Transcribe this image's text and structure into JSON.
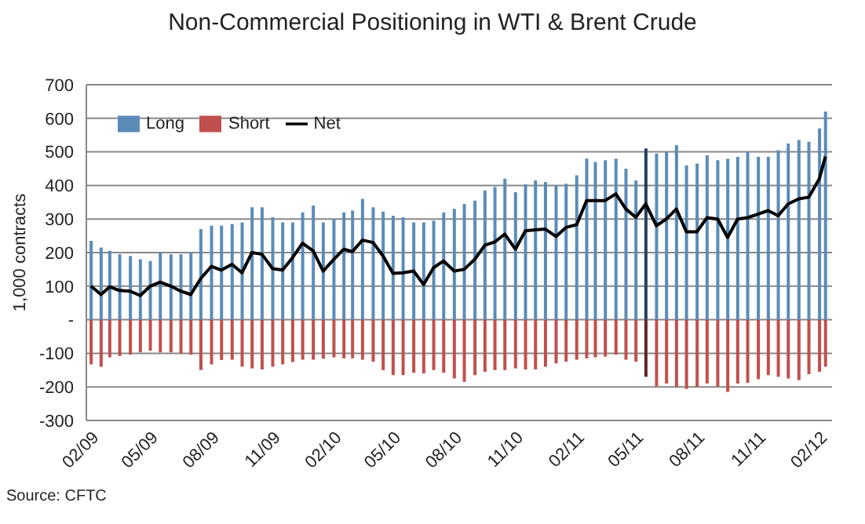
{
  "chart_data": {
    "type": "bar",
    "title": "Non-Commercial Positioning in WTI & Brent Crude",
    "ylabel": "1,000 contracts",
    "annotations": [
      "Source: CFTC"
    ],
    "x": [
      "2009-02-01",
      "2009-02-16",
      "2009-03-01",
      "2009-03-16",
      "2009-04-01",
      "2009-04-16",
      "2009-05-01",
      "2009-05-16",
      "2009-06-01",
      "2009-06-16",
      "2009-07-01",
      "2009-07-16",
      "2009-08-01",
      "2009-08-16",
      "2009-09-01",
      "2009-09-16",
      "2009-10-01",
      "2009-10-16",
      "2009-11-01",
      "2009-11-16",
      "2009-12-01",
      "2009-12-16",
      "2010-01-01",
      "2010-01-16",
      "2010-02-01",
      "2010-02-16",
      "2010-03-01",
      "2010-03-16",
      "2010-04-01",
      "2010-04-16",
      "2010-05-01",
      "2010-05-16",
      "2010-06-01",
      "2010-06-16",
      "2010-07-01",
      "2010-07-16",
      "2010-08-01",
      "2010-08-16",
      "2010-09-01",
      "2010-09-16",
      "2010-10-01",
      "2010-10-16",
      "2010-11-01",
      "2010-11-16",
      "2010-12-01",
      "2010-12-16",
      "2011-01-01",
      "2011-01-16",
      "2011-02-01",
      "2011-02-16",
      "2011-03-01",
      "2011-03-16",
      "2011-04-01",
      "2011-04-16",
      "2011-05-01",
      "2011-05-16",
      "2011-06-01",
      "2011-06-16",
      "2011-07-01",
      "2011-07-16",
      "2011-08-01",
      "2011-08-16",
      "2011-09-01",
      "2011-09-16",
      "2011-10-01",
      "2011-10-16",
      "2011-11-01",
      "2011-11-16",
      "2011-12-01",
      "2011-12-16",
      "2012-01-01",
      "2012-01-16",
      "2012-02-01",
      "2012-02-10"
    ],
    "series": [
      {
        "name": "Long",
        "color": "#5b8cb8",
        "values": [
          235,
          215,
          205,
          195,
          190,
          180,
          175,
          200,
          195,
          195,
          200,
          270,
          280,
          280,
          285,
          290,
          335,
          335,
          305,
          290,
          290,
          320,
          340,
          290,
          300,
          320,
          325,
          360,
          335,
          322,
          310,
          305,
          290,
          290,
          295,
          320,
          330,
          345,
          355,
          385,
          395,
          420,
          380,
          403,
          415,
          410,
          400,
          405,
          430,
          480,
          470,
          475,
          480,
          450,
          415,
          510,
          495,
          500,
          520,
          460,
          465,
          490,
          475,
          480,
          485,
          500,
          485,
          485,
          505,
          525,
          535,
          530,
          570,
          620
        ],
        "colors": [
          "#5b8cb8",
          "#5b8cb8",
          "#5b8cb8",
          "#5b8cb8",
          "#5b8cb8",
          "#5b8cb8",
          "#5b8cb8",
          "#5b8cb8",
          "#5b8cb8",
          "#5b8cb8",
          "#5b8cb8",
          "#5b8cb8",
          "#5b8cb8",
          "#5b8cb8",
          "#5b8cb8",
          "#5b8cb8",
          "#5b8cb8",
          "#5b8cb8",
          "#5b8cb8",
          "#5b8cb8",
          "#5b8cb8",
          "#5b8cb8",
          "#5b8cb8",
          "#5b8cb8",
          "#5b8cb8",
          "#5b8cb8",
          "#5b8cb8",
          "#5b8cb8",
          "#5b8cb8",
          "#5b8cb8",
          "#5b8cb8",
          "#5b8cb8",
          "#5b8cb8",
          "#5b8cb8",
          "#5b8cb8",
          "#5b8cb8",
          "#5b8cb8",
          "#5b8cb8",
          "#5b8cb8",
          "#5b8cb8",
          "#5b8cb8",
          "#5b8cb8",
          "#5b8cb8",
          "#5b8cb8",
          "#5b8cb8",
          "#5b8cb8",
          "#5b8cb8",
          "#5b8cb8",
          "#5b8cb8",
          "#5b8cb8",
          "#5b8cb8",
          "#5b8cb8",
          "#5b8cb8",
          "#5b8cb8",
          "#5b8cb8",
          "#243f60",
          "#5b8cb8",
          "#5b8cb8",
          "#5b8cb8",
          "#5b8cb8",
          "#5b8cb8",
          "#5b8cb8",
          "#5b8cb8",
          "#5b8cb8",
          "#5b8cb8",
          "#5b8cb8",
          "#5b8cb8",
          "#5b8cb8",
          "#5b8cb8",
          "#5b8cb8",
          "#5b8cb8",
          "#5b8cb8",
          "#5b8cb8",
          "#5b8cb8"
        ]
      },
      {
        "name": "Short",
        "color": "#c0504d",
        "values": [
          -133,
          -140,
          -112,
          -108,
          -104,
          -97,
          -92,
          -97,
          -97,
          -100,
          -104,
          -150,
          -133,
          -120,
          -119,
          -140,
          -145,
          -148,
          -140,
          -133,
          -126,
          -119,
          -119,
          -116,
          -112,
          -115,
          -115,
          -119,
          -125,
          -150,
          -165,
          -165,
          -158,
          -160,
          -150,
          -158,
          -175,
          -185,
          -165,
          -155,
          -150,
          -150,
          -145,
          -148,
          -148,
          -140,
          -130,
          -125,
          -119,
          -115,
          -112,
          -110,
          -104,
          -119,
          -125,
          -170,
          -199,
          -190,
          -200,
          -206,
          -200,
          -190,
          -199,
          -215,
          -190,
          -188,
          -177,
          -165,
          -170,
          -175,
          -180,
          -162,
          -155,
          -140
        ],
        "colors": [
          "#c0504d",
          "#c0504d",
          "#c0504d",
          "#c0504d",
          "#c0504d",
          "#c0504d",
          "#c0504d",
          "#c0504d",
          "#c0504d",
          "#c0504d",
          "#c0504d",
          "#c0504d",
          "#c0504d",
          "#c0504d",
          "#c0504d",
          "#c0504d",
          "#c0504d",
          "#c0504d",
          "#c0504d",
          "#c0504d",
          "#c0504d",
          "#c0504d",
          "#c0504d",
          "#c0504d",
          "#c0504d",
          "#c0504d",
          "#c0504d",
          "#c0504d",
          "#c0504d",
          "#c0504d",
          "#c0504d",
          "#c0504d",
          "#c0504d",
          "#c0504d",
          "#c0504d",
          "#c0504d",
          "#c0504d",
          "#c0504d",
          "#c0504d",
          "#c0504d",
          "#c0504d",
          "#c0504d",
          "#c0504d",
          "#c0504d",
          "#c0504d",
          "#c0504d",
          "#c0504d",
          "#c0504d",
          "#c0504d",
          "#c0504d",
          "#c0504d",
          "#c0504d",
          "#c0504d",
          "#c0504d",
          "#c0504d",
          "#632523",
          "#c0504d",
          "#c0504d",
          "#c0504d",
          "#c0504d",
          "#c0504d",
          "#c0504d",
          "#c0504d",
          "#c0504d",
          "#c0504d",
          "#c0504d",
          "#c0504d",
          "#c0504d",
          "#c0504d",
          "#c0504d",
          "#c0504d",
          "#c0504d",
          "#c0504d",
          "#c0504d"
        ]
      },
      {
        "name": "Net",
        "type": "line",
        "color": "#000000",
        "values": [
          100,
          75,
          98,
          87,
          85,
          72,
          100,
          112,
          100,
          85,
          75,
          123,
          159,
          148,
          165,
          140,
          200,
          195,
          152,
          148,
          185,
          228,
          205,
          145,
          180,
          210,
          203,
          237,
          230,
          190,
          138,
          140,
          145,
          105,
          155,
          175,
          145,
          150,
          180,
          222,
          232,
          255,
          210,
          265,
          268,
          270,
          248,
          275,
          283,
          355,
          355,
          355,
          375,
          330,
          305,
          345,
          280,
          300,
          330,
          262,
          262,
          304,
          300,
          245,
          300,
          304,
          315,
          325,
          310,
          345,
          360,
          365,
          420,
          486
        ]
      }
    ],
    "xlim": [
      "2009-01-25",
      "2012-02-20"
    ],
    "xticks": [
      {
        "value": "2009-02-01",
        "label": "02/09"
      },
      {
        "value": "2009-05-01",
        "label": "05/09"
      },
      {
        "value": "2009-08-01",
        "label": "08/09"
      },
      {
        "value": "2009-11-01",
        "label": "11/09"
      },
      {
        "value": "2010-02-01",
        "label": "02/10"
      },
      {
        "value": "2010-05-01",
        "label": "05/10"
      },
      {
        "value": "2010-08-01",
        "label": "08/10"
      },
      {
        "value": "2010-11-01",
        "label": "11/10"
      },
      {
        "value": "2011-02-01",
        "label": "02/11"
      },
      {
        "value": "2011-05-01",
        "label": "05/11"
      },
      {
        "value": "2011-08-01",
        "label": "08/11"
      },
      {
        "value": "2011-11-01",
        "label": "11/11"
      },
      {
        "value": "2012-02-01",
        "label": "02/12"
      }
    ],
    "ylim": [
      -300,
      700
    ],
    "yticks": [
      -300,
      -200,
      -100,
      {
        "value": 0,
        "label": "-"
      },
      100,
      200,
      300,
      400,
      500,
      600,
      700
    ],
    "grid": "y",
    "legend": "top left"
  }
}
